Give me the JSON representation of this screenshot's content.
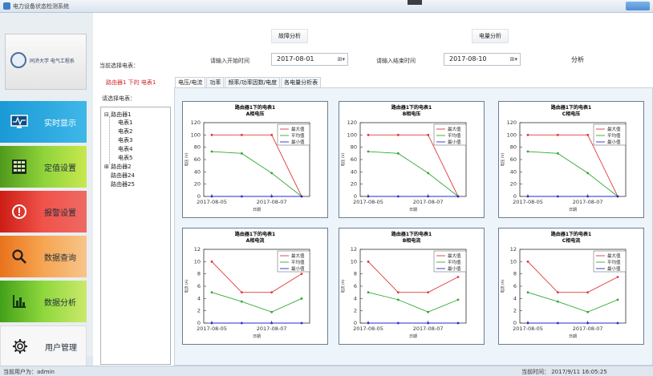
{
  "window": {
    "title": "电力设备状态检测系统"
  },
  "sidebar": {
    "logo_text": "同济大学 电气工程系",
    "items": [
      {
        "label": "实时显示",
        "icon": "monitor-icon"
      },
      {
        "label": "定值设置",
        "icon": "table-icon"
      },
      {
        "label": "报警设置",
        "icon": "alert-icon"
      },
      {
        "label": "数据查询",
        "icon": "search-icon"
      },
      {
        "label": "数据分析",
        "icon": "bar-chart-icon"
      },
      {
        "label": "用户管理",
        "icon": "gear-icon"
      }
    ]
  },
  "toolbar": {
    "fault_analysis": "故障分析",
    "energy_analysis": "电量分析",
    "current_meter_label": "当前选择电表：",
    "start_label": "请输入开始时间",
    "start_value": "2017-08-01",
    "end_label": "请输入结束时间",
    "end_value": "2017-08-10",
    "analyze": "分析",
    "dropdown_glyph": "⊞▾"
  },
  "tree": {
    "selected_heading": "路由器1 下的 电表1",
    "select_label": "请选择电表：",
    "nodes": [
      {
        "label": "路由器1",
        "expander": "⊟",
        "children": [
          "电表1",
          "电表2",
          "电表3",
          "电表4",
          "电表5"
        ]
      },
      {
        "label": "路由器2",
        "expander": "⊞"
      },
      {
        "label": "路由器24",
        "expander": ""
      },
      {
        "label": "路由器25",
        "expander": ""
      }
    ]
  },
  "tabs": [
    "电压/电流",
    "功率",
    "频率/功率因数/电度",
    "各电量分析表"
  ],
  "chart_data": [
    {
      "type": "line",
      "title": "路由器1下的电表1",
      "subtitle": "A相电压",
      "xlabel": "日期",
      "ylabel": "电压 (V)",
      "x": [
        "2017-08-05",
        "2017-08-06",
        "2017-08-07",
        "2017-08-08"
      ],
      "xticks": [
        "2017-08-05",
        "2017-08-07"
      ],
      "ylim": [
        0,
        120
      ],
      "yticks": [
        0,
        20,
        40,
        60,
        80,
        100,
        120
      ],
      "series": [
        {
          "name": "最大值",
          "color": "#e03a3a",
          "values": [
            100,
            100,
            100,
            0
          ]
        },
        {
          "name": "平均值",
          "color": "#34a834",
          "values": [
            73,
            70,
            38,
            0
          ]
        },
        {
          "name": "最小值",
          "color": "#2a2ad0",
          "values": [
            0,
            0,
            0,
            0
          ]
        }
      ]
    },
    {
      "type": "line",
      "title": "路由器1下的电表1",
      "subtitle": "B相电压",
      "xlabel": "日期",
      "ylabel": "电压 (V)",
      "x": [
        "2017-08-05",
        "2017-08-06",
        "2017-08-07",
        "2017-08-08"
      ],
      "xticks": [
        "2017-08-05",
        "2017-08-07"
      ],
      "ylim": [
        0,
        120
      ],
      "yticks": [
        0,
        20,
        40,
        60,
        80,
        100,
        120
      ],
      "series": [
        {
          "name": "最大值",
          "color": "#e03a3a",
          "values": [
            100,
            100,
            100,
            0
          ]
        },
        {
          "name": "平均值",
          "color": "#34a834",
          "values": [
            73,
            70,
            38,
            0
          ]
        },
        {
          "name": "最小值",
          "color": "#2a2ad0",
          "values": [
            0,
            0,
            0,
            0
          ]
        }
      ]
    },
    {
      "type": "line",
      "title": "路由器1下的电表1",
      "subtitle": "C相电压",
      "xlabel": "日期",
      "ylabel": "电压 (V)",
      "x": [
        "2017-08-05",
        "2017-08-06",
        "2017-08-07",
        "2017-08-08"
      ],
      "xticks": [
        "2017-08-05",
        "2017-08-07"
      ],
      "ylim": [
        0,
        120
      ],
      "yticks": [
        0,
        20,
        40,
        60,
        80,
        100,
        120
      ],
      "series": [
        {
          "name": "最大值",
          "color": "#e03a3a",
          "values": [
            100,
            100,
            100,
            0
          ]
        },
        {
          "name": "平均值",
          "color": "#34a834",
          "values": [
            73,
            70,
            38,
            0
          ]
        },
        {
          "name": "最小值",
          "color": "#2a2ad0",
          "values": [
            0,
            0,
            0,
            0
          ]
        }
      ]
    },
    {
      "type": "line",
      "title": "路由器1下的电表1",
      "subtitle": "A相电流",
      "xlabel": "日期",
      "ylabel": "电流 (A)",
      "x": [
        "2017-08-05",
        "2017-08-06",
        "2017-08-07",
        "2017-08-08"
      ],
      "xticks": [
        "2017-08-05",
        "2017-08-07"
      ],
      "ylim": [
        0,
        12
      ],
      "yticks": [
        0,
        2,
        4,
        6,
        8,
        10,
        12
      ],
      "series": [
        {
          "name": "最大值",
          "color": "#e03a3a",
          "values": [
            10,
            5,
            5,
            8
          ]
        },
        {
          "name": "平均值",
          "color": "#34a834",
          "values": [
            5,
            3.5,
            1.8,
            4
          ]
        },
        {
          "name": "最小值",
          "color": "#2a2ad0",
          "values": [
            0,
            0,
            0,
            0
          ]
        }
      ]
    },
    {
      "type": "line",
      "title": "路由器1下的电表1",
      "subtitle": "B相电流",
      "xlabel": "日期",
      "ylabel": "电流 (A)",
      "x": [
        "2017-08-05",
        "2017-08-06",
        "2017-08-07",
        "2017-08-08"
      ],
      "xticks": [
        "2017-08-05",
        "2017-08-07"
      ],
      "ylim": [
        0,
        12
      ],
      "yticks": [
        0,
        2,
        4,
        6,
        8,
        10,
        12
      ],
      "series": [
        {
          "name": "最大值",
          "color": "#e03a3a",
          "values": [
            10,
            5,
            5,
            7.5
          ]
        },
        {
          "name": "平均值",
          "color": "#34a834",
          "values": [
            5,
            3.8,
            1.8,
            3.8
          ]
        },
        {
          "name": "最小值",
          "color": "#2a2ad0",
          "values": [
            0,
            0,
            0,
            0
          ]
        }
      ]
    },
    {
      "type": "line",
      "title": "路由器1下的电表1",
      "subtitle": "C相电流",
      "xlabel": "日期",
      "ylabel": "电流 (A)",
      "x": [
        "2017-08-05",
        "2017-08-06",
        "2017-08-07",
        "2017-08-08"
      ],
      "xticks": [
        "2017-08-05",
        "2017-08-07"
      ],
      "ylim": [
        0,
        12
      ],
      "yticks": [
        0,
        2,
        4,
        6,
        8,
        10,
        12
      ],
      "series": [
        {
          "name": "最大值",
          "color": "#e03a3a",
          "values": [
            10,
            5,
            5,
            7.5
          ]
        },
        {
          "name": "平均值",
          "color": "#34a834",
          "values": [
            5,
            3.5,
            1.8,
            3.8
          ]
        },
        {
          "name": "最小值",
          "color": "#2a2ad0",
          "values": [
            0,
            0,
            0,
            0
          ]
        }
      ]
    }
  ],
  "status": {
    "user": "当前用户为：admin",
    "time": "当前时间：  2017/9/11 16:05:25"
  }
}
